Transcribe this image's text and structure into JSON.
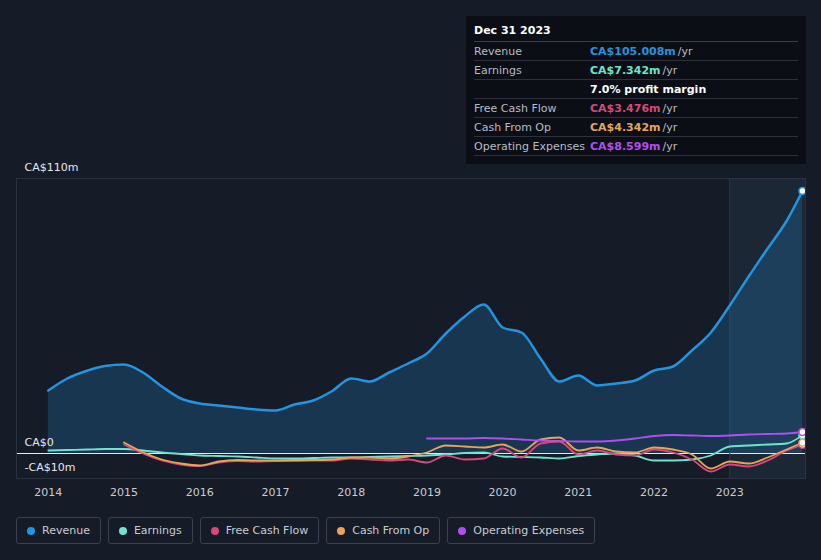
{
  "chart_data": {
    "type": "line",
    "x": [
      2014,
      2014.25,
      2014.5,
      2014.75,
      2015,
      2015.25,
      2015.5,
      2015.75,
      2016,
      2016.25,
      2016.5,
      2016.75,
      2017,
      2017.25,
      2017.5,
      2017.75,
      2018,
      2018.25,
      2018.5,
      2018.75,
      2019,
      2019.25,
      2019.5,
      2019.75,
      2020,
      2020.25,
      2020.5,
      2020.75,
      2021,
      2021.25,
      2021.5,
      2021.75,
      2022,
      2022.25,
      2022.5,
      2022.75,
      2023,
      2023.25,
      2023.5,
      2023.75,
      2023.96
    ],
    "xlim": [
      2013.58,
      2024
    ],
    "xticks": [
      2014,
      2015,
      2016,
      2017,
      2018,
      2019,
      2020,
      2021,
      2022,
      2023
    ],
    "ylim": [
      -10,
      110
    ],
    "yticks": [
      {
        "value": -10,
        "label": "-CA$10m"
      },
      {
        "value": 0,
        "label": "CA$0"
      },
      {
        "value": 110,
        "label": "CA$110m"
      }
    ],
    "grid": true,
    "legend": "bottom",
    "series": [
      {
        "name": "Revenue",
        "color": "#2394df",
        "type": "area",
        "values": [
          25.2,
          30,
          33,
          35,
          35.6,
          32.4,
          26.8,
          22,
          20,
          19.2,
          18.4,
          17.6,
          17.2,
          19.6,
          21.2,
          25,
          30,
          28.8,
          32.4,
          36,
          40,
          48,
          54.8,
          59.6,
          50.4,
          48.4,
          38,
          28.8,
          31.2,
          27.2,
          28,
          29.2,
          33.2,
          34.8,
          41.2,
          48.4,
          59.2,
          70.8,
          82,
          93,
          105.008
        ]
      },
      {
        "name": "Earnings",
        "color": "#6fe3cf",
        "values": [
          1.2,
          1.4,
          1.6,
          1.8,
          1.8,
          1.2,
          0.4,
          -0.2,
          -0.8,
          -1,
          -1.2,
          -1.6,
          -2,
          -2,
          -1.8,
          -1.6,
          -1.6,
          -1.4,
          -1.2,
          -1,
          -0.8,
          -0.4,
          0.2,
          0.4,
          -1.2,
          -1.4,
          -1.6,
          -2,
          -1,
          -0.4,
          0,
          -0.8,
          -2.8,
          -2.8,
          -2.4,
          -0.8,
          2.8,
          3.2,
          3.6,
          4,
          7.342
        ]
      },
      {
        "name": "Free Cash Flow",
        "color": "#d9487a",
        "values": [
          null,
          null,
          null,
          null,
          3.6,
          0,
          -2.8,
          -4.4,
          -5,
          -3.6,
          -3,
          -3.2,
          -3,
          -3,
          -2.8,
          -2.8,
          -2,
          -2.4,
          -2.8,
          -2.4,
          -3.6,
          -0.8,
          -2.4,
          -2,
          2,
          -1.6,
          4,
          4.8,
          -0.4,
          1.2,
          -0.4,
          -0.8,
          1.6,
          0.4,
          -2.4,
          -7.2,
          -4.4,
          -5.2,
          -2.8,
          1.2,
          3.476
        ]
      },
      {
        "name": "Cash From Op",
        "color": "#e8a45a",
        "values": [
          null,
          null,
          null,
          null,
          4.4,
          0.5,
          -2.4,
          -4,
          -4.8,
          -3.2,
          -2.6,
          -2.8,
          -2.8,
          -2.6,
          -2.6,
          -2.4,
          -1.6,
          -1.6,
          -2,
          -1.2,
          0.4,
          3.2,
          2.8,
          2.4,
          3.6,
          0.8,
          5.6,
          6.4,
          1.2,
          2.4,
          0.8,
          0.4,
          2.4,
          1.6,
          -0.4,
          -6,
          -3.2,
          -4,
          -1.6,
          1.6,
          4.342
        ]
      },
      {
        "name": "Operating Expenses",
        "color": "#b04ef0",
        "values": [
          null,
          null,
          null,
          null,
          null,
          null,
          null,
          null,
          null,
          null,
          null,
          null,
          null,
          null,
          null,
          null,
          null,
          null,
          null,
          null,
          6,
          6,
          6,
          6.2,
          6,
          5.6,
          5.2,
          5,
          4.8,
          4.8,
          5.2,
          6,
          7,
          7.4,
          7.2,
          7,
          7.2,
          7.6,
          7.8,
          8,
          8.599
        ]
      }
    ],
    "annotations": {
      "title": "Dec 31 2023",
      "rows": [
        {
          "label": "Revenue",
          "value": "CA$105.008m",
          "unit": "/yr"
        },
        {
          "label": "Earnings",
          "value": "CA$7.342m",
          "unit": "/yr"
        },
        {
          "text": "7.0% profit margin"
        },
        {
          "label": "Free Cash Flow",
          "value": "CA$3.476m",
          "unit": "/yr"
        },
        {
          "label": "Cash From Op",
          "value": "CA$4.342m",
          "unit": "/yr"
        },
        {
          "label": "Operating Expenses",
          "value": "CA$8.599m",
          "unit": "/yr"
        }
      ]
    }
  }
}
